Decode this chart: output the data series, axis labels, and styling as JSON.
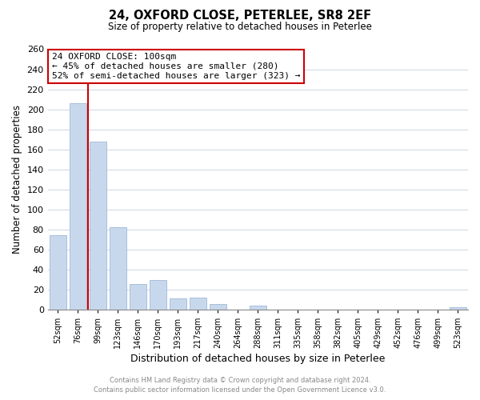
{
  "title": "24, OXFORD CLOSE, PETERLEE, SR8 2EF",
  "subtitle": "Size of property relative to detached houses in Peterlee",
  "xlabel": "Distribution of detached houses by size in Peterlee",
  "ylabel": "Number of detached properties",
  "categories": [
    "52sqm",
    "76sqm",
    "99sqm",
    "123sqm",
    "146sqm",
    "170sqm",
    "193sqm",
    "217sqm",
    "240sqm",
    "264sqm",
    "288sqm",
    "311sqm",
    "335sqm",
    "358sqm",
    "382sqm",
    "405sqm",
    "429sqm",
    "452sqm",
    "476sqm",
    "499sqm",
    "523sqm"
  ],
  "values": [
    74,
    206,
    168,
    82,
    25,
    29,
    11,
    12,
    5,
    0,
    4,
    0,
    0,
    0,
    0,
    0,
    0,
    0,
    0,
    0,
    2
  ],
  "bar_color": "#c8d8ec",
  "bar_edge_color": "#a0b8d8",
  "highlight_line_color": "#cc0000",
  "ylim": [
    0,
    260
  ],
  "yticks": [
    0,
    20,
    40,
    60,
    80,
    100,
    120,
    140,
    160,
    180,
    200,
    220,
    240,
    260
  ],
  "annotation_title": "24 OXFORD CLOSE: 100sqm",
  "annotation_line1": "← 45% of detached houses are smaller (280)",
  "annotation_line2": "52% of semi-detached houses are larger (323) →",
  "annotation_box_color": "#ffffff",
  "annotation_box_edge": "#cc0000",
  "footer_line1": "Contains HM Land Registry data © Crown copyright and database right 2024.",
  "footer_line2": "Contains public sector information licensed under the Open Government Licence v3.0.",
  "background_color": "#ffffff",
  "grid_color": "#ccd8e8"
}
